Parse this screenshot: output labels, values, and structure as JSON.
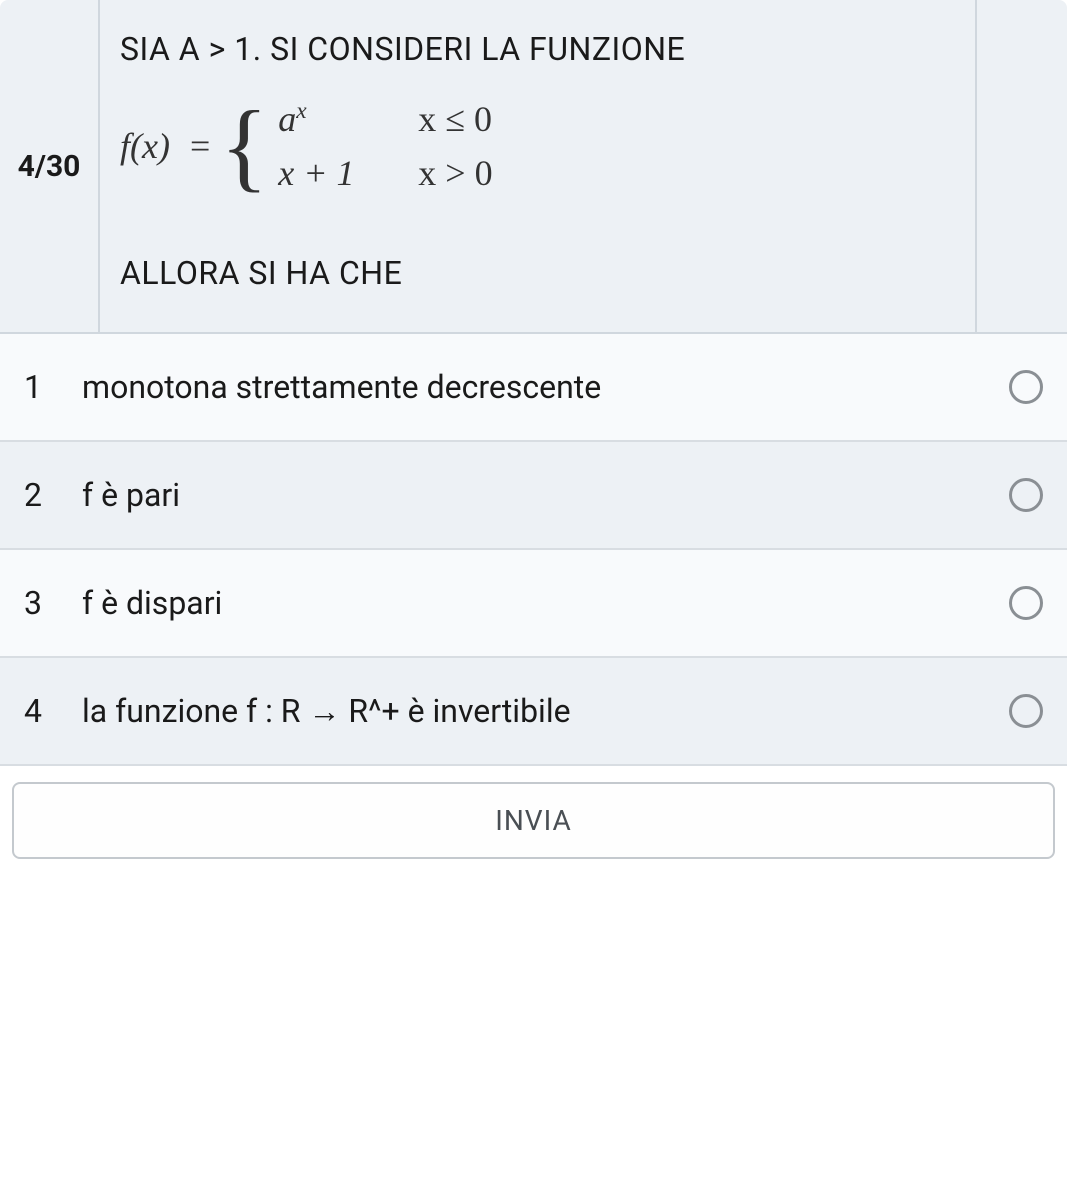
{
  "progress": "4/30",
  "question": {
    "line1": "SIA A > 1. SI CONSIDERI LA FUNZIONE",
    "line2": "ALLORA SI HA CHE",
    "formula": {
      "lhs": "f(x)",
      "eq": "=",
      "case1_expr_base": "a",
      "case1_expr_sup": "x",
      "case1_cond": "x ≤ 0",
      "case2_expr": "x + 1",
      "case2_cond": "x > 0"
    }
  },
  "options": [
    {
      "num": "1",
      "text": "monotona strettamente decrescente"
    },
    {
      "num": "2",
      "text": "f è pari"
    },
    {
      "num": "3",
      "text": "f è dispari"
    },
    {
      "num": "4",
      "text": "la funzione f : R → R^+ è invertibile"
    }
  ],
  "submit_label": "INVIA",
  "colors": {
    "header_bg": "#edf1f5",
    "option_plain_bg": "#f8fafc",
    "option_alt_bg": "#edf1f5",
    "border": "#d0d7de",
    "text": "#1a1a1a",
    "radio_border": "#8a8f94",
    "submit_border": "#c4c9ce",
    "submit_text": "#4a4f54"
  },
  "typography": {
    "question_fontsize": 32,
    "option_fontsize": 32,
    "progress_fontsize": 30,
    "formula_fontsize": 36,
    "submit_fontsize": 28
  }
}
